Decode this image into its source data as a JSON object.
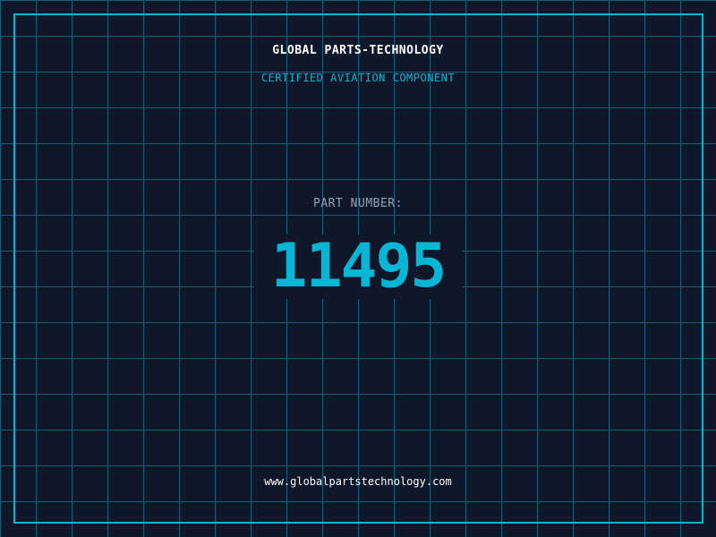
{
  "header": {
    "company": "GLOBAL PARTS-TECHNOLOGY",
    "subtitle": "CERTIFIED AVIATION COMPONENT"
  },
  "part": {
    "label": "PART NUMBER:",
    "number": "11495"
  },
  "footer": {
    "url": "www.globalpartstechnology.com"
  },
  "colors": {
    "background": "#0f172a",
    "grid": "#155e75",
    "accent": "#06b6d4"
  }
}
